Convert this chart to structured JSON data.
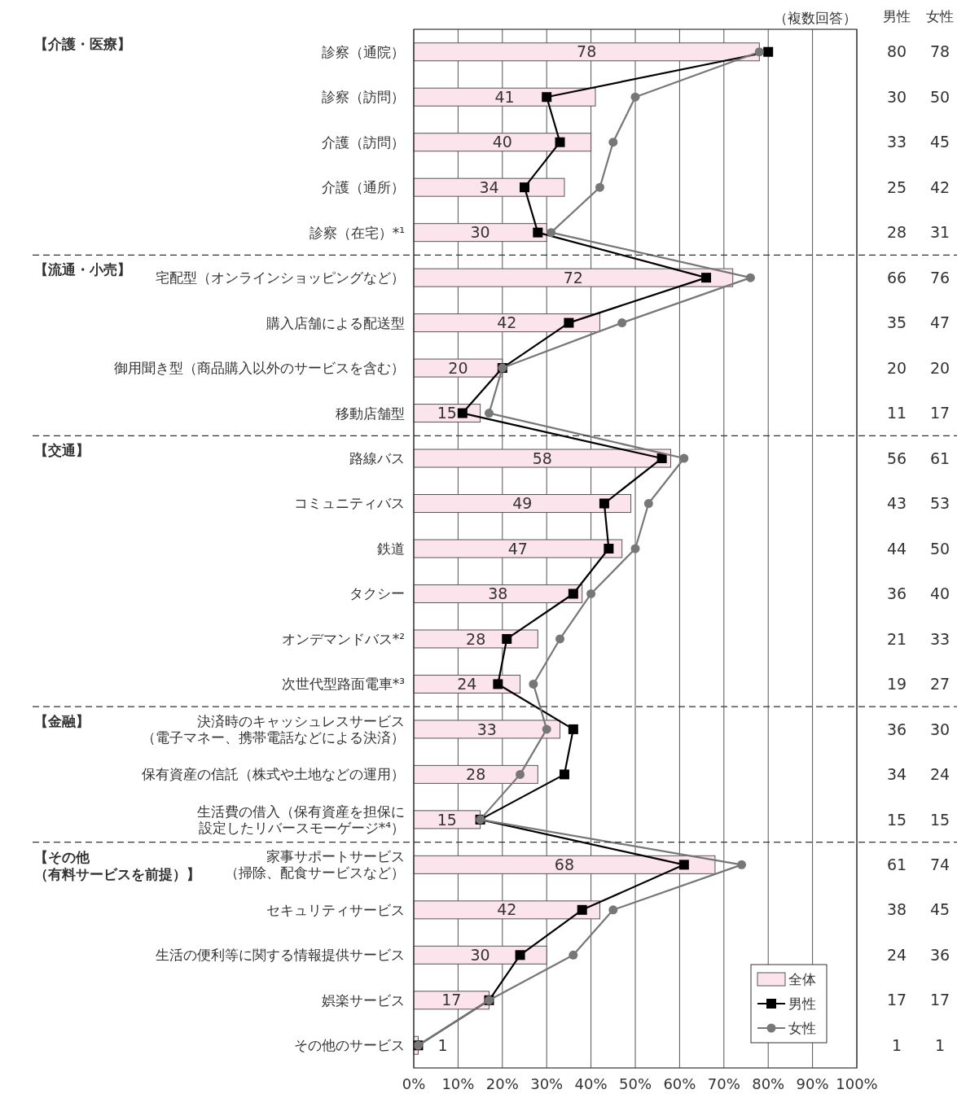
{
  "chart_data": {
    "type": "bar",
    "orientation": "horizontal",
    "categories": [
      "診察（通院）",
      "診察（訪問）",
      "介護（訪問）",
      "介護（通所）",
      "診察（在宅）*¹",
      "宅配型（オンラインショッピングなど）",
      "購入店舗による配送型",
      "御用聞き型（商品購入以外のサービスを含む）",
      "移動店舗型",
      "路線バス",
      "コミュニティバス",
      "鉄道",
      "タクシー",
      "オンデマンドバス*²",
      "次世代型路面電車*³",
      "決済時のキャッシュレスサービス（電子マネー、携帯電話などによる決済）",
      "保有資産の信託（株式や土地などの運用）",
      "生活費の借入（保有資産を担保に設定したリバースモーゲージ*⁴）",
      "家事サポートサービス（掃除、配食サービスなど）",
      "セキュリティサービス",
      "生活の便利等に関する情報提供サービス",
      "娯楽サービス",
      "その他のサービス"
    ],
    "series": [
      {
        "name": "全体",
        "color": "#fce4ec",
        "values": [
          78,
          41,
          40,
          34,
          30,
          72,
          42,
          20,
          15,
          58,
          49,
          47,
          38,
          28,
          24,
          33,
          28,
          15,
          68,
          42,
          30,
          17,
          1
        ]
      },
      {
        "name": "男性",
        "type": "line",
        "color": "#000000",
        "marker": "square",
        "values": [
          80,
          30,
          33,
          25,
          28,
          66,
          35,
          20,
          11,
          56,
          43,
          44,
          36,
          21,
          19,
          36,
          34,
          15,
          61,
          38,
          24,
          17,
          1
        ]
      },
      {
        "name": "女性",
        "type": "line",
        "color": "#777777",
        "marker": "circle",
        "values": [
          78,
          50,
          45,
          42,
          31,
          76,
          47,
          20,
          17,
          61,
          53,
          50,
          40,
          33,
          27,
          30,
          24,
          15,
          74,
          45,
          36,
          17,
          1
        ]
      }
    ],
    "xlim": [
      0,
      100
    ],
    "xticks": [
      {
        "value": 0,
        "label": "0%"
      },
      {
        "value": 10,
        "label": "10%"
      },
      {
        "value": 20,
        "label": "20%"
      },
      {
        "value": 30,
        "label": "30%"
      },
      {
        "value": 40,
        "label": "40%"
      },
      {
        "value": 50,
        "label": "50%"
      },
      {
        "value": 60,
        "label": "60%"
      },
      {
        "value": 70,
        "label": "70%"
      },
      {
        "value": 80,
        "label": "80%"
      },
      {
        "value": 90,
        "label": "90%"
      },
      {
        "value": 100,
        "label": "100%"
      }
    ],
    "grid": "x",
    "data_labels": true,
    "legend": "bottom right",
    "annotations": [
      "（複数回答）",
      "【介護・医療】",
      "【流通・小売】",
      "【交通】",
      "【金融】",
      "【その他（有料サービスを前提）】"
    ]
  }
}
